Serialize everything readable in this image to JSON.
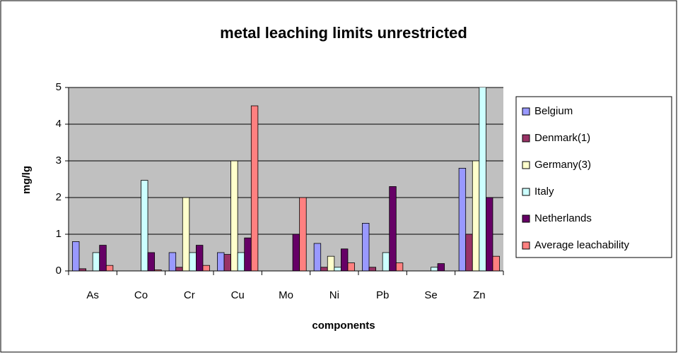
{
  "chart_data": {
    "type": "bar",
    "title": "metal leaching limits unrestricted",
    "x_label": "components",
    "y_label": "mg/lg",
    "categories": [
      "As",
      "Co",
      "Cr",
      "Cu",
      "Mo",
      "Ni",
      "Pb",
      "Se",
      "Zn"
    ],
    "series": [
      {
        "name": "Belgium",
        "color": "#9999ff",
        "values": [
          0.8,
          null,
          0.5,
          0.5,
          null,
          0.75,
          1.3,
          null,
          2.8
        ]
      },
      {
        "name": "Denmark(1)",
        "color": "#993366",
        "values": [
          0.06,
          null,
          0.1,
          0.45,
          null,
          0.1,
          0.1,
          null,
          1.0
        ]
      },
      {
        "name": "Germany(3)",
        "color": "#ffffcc",
        "values": [
          null,
          null,
          2.0,
          3.0,
          null,
          0.4,
          null,
          null,
          3.0
        ]
      },
      {
        "name": "Italy",
        "color": "#ccffff",
        "values": [
          0.5,
          2.47,
          0.5,
          0.5,
          null,
          0.1,
          0.5,
          0.1,
          5.5
        ]
      },
      {
        "name": "Netherlands",
        "color": "#660066",
        "values": [
          0.7,
          0.5,
          0.7,
          0.9,
          1.0,
          0.6,
          2.3,
          0.2,
          2.0
        ]
      },
      {
        "name": "Average leachability",
        "color": "#ff8080",
        "values": [
          0.15,
          0.03,
          0.15,
          4.5,
          2.0,
          0.22,
          0.22,
          null,
          0.4
        ]
      }
    ],
    "ylim": [
      0,
      5
    ],
    "yticks": [
      0,
      1,
      2,
      3,
      4,
      5
    ],
    "grid": true,
    "legend": "right"
  }
}
